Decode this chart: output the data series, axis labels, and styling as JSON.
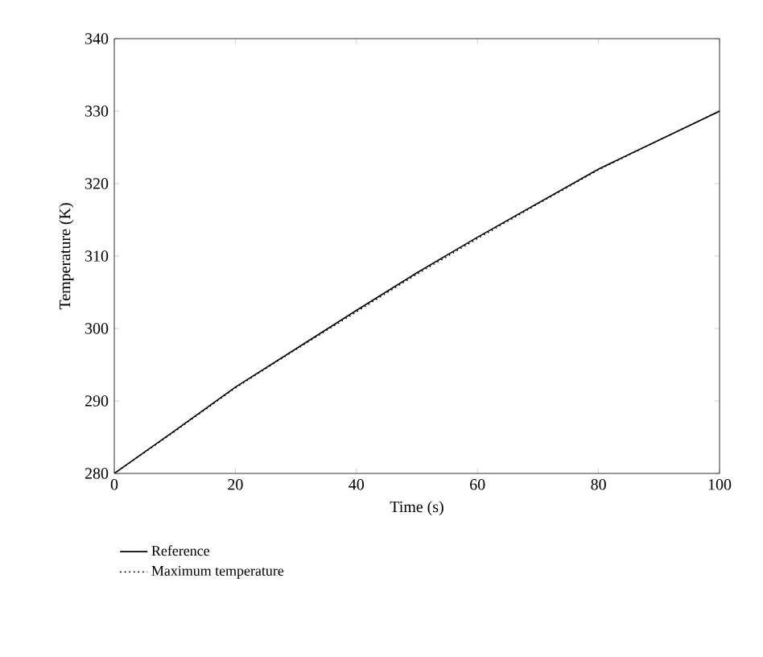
{
  "chart_data": {
    "type": "line",
    "xlabel": "Time (s)",
    "ylabel": "Temperature (K)",
    "x": [
      0,
      10,
      20,
      30,
      40,
      50,
      60,
      70,
      80,
      90,
      100
    ],
    "series": [
      {
        "name": "Reference",
        "color": "#000000",
        "line_style": "solid",
        "values": [
          280,
          285.9,
          291.9,
          297.2,
          302.5,
          307.7,
          312.6,
          317.3,
          322,
          326,
          330
        ]
      },
      {
        "name": "Maximum temperature",
        "color": "#000000",
        "line_style": "dotted",
        "values": [
          280,
          285.8,
          291.8,
          297.1,
          302.3,
          307.5,
          312.4,
          317.2,
          321.9,
          326,
          330
        ]
      }
    ],
    "xlim": [
      0,
      100
    ],
    "ylim": [
      280,
      340
    ],
    "xticks": [
      0,
      20,
      40,
      60,
      80,
      100
    ],
    "yticks": [
      280,
      290,
      300,
      310,
      320,
      330,
      340
    ],
    "grid": false,
    "legend": "bottom"
  }
}
